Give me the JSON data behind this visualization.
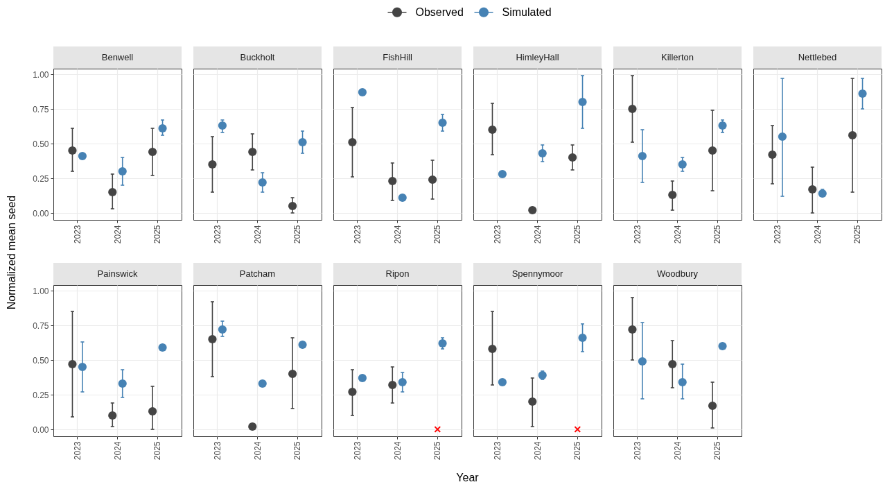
{
  "chart_data": [
    {
      "type": "scatter",
      "title": "Benwell",
      "ylabel": "Normalized mean seed",
      "legend": "top",
      "categories": [
        "2023",
        "2024",
        "2025"
      ],
      "ylim": [
        -0.05,
        1.04
      ],
      "yticks": [
        {
          "value": 0,
          "label": "0.00"
        },
        {
          "value": 0.25,
          "label": "0.25"
        },
        {
          "value": 0.5,
          "label": "0.50"
        },
        {
          "value": 0.75,
          "label": "0.75"
        },
        {
          "value": 1,
          "label": "1.00"
        }
      ],
      "grid": true,
      "marker": "circle",
      "series": [
        {
          "name": "Observed",
          "color": "#444444",
          "values": [
            0.45,
            0.15,
            0.44
          ],
          "errors": [
            [
              0.3,
              0.61
            ],
            [
              0.03,
              0.28
            ],
            [
              0.27,
              0.61
            ]
          ]
        },
        {
          "name": "Simulated",
          "color": "#4682b4",
          "values": [
            0.41,
            0.3,
            0.61
          ],
          "errors": [
            null,
            [
              0.2,
              0.4
            ],
            [
              0.56,
              0.67
            ]
          ]
        }
      ]
    },
    {
      "type": "scatter",
      "title": "Buckholt",
      "tick_labels": "x",
      "categories": [
        "2023",
        "2024",
        "2025"
      ],
      "ylim": [
        -0.05,
        1.04
      ],
      "yticks": [
        0,
        0.25,
        0.5,
        0.75,
        1
      ],
      "grid": true,
      "marker": "circle",
      "series": [
        {
          "name": "Observed",
          "color": "#444444",
          "values": [
            0.35,
            0.44,
            0.05
          ],
          "errors": [
            [
              0.15,
              0.55
            ],
            [
              0.31,
              0.57
            ],
            [
              0.0,
              0.11
            ]
          ]
        },
        {
          "name": "Simulated",
          "color": "#4682b4",
          "values": [
            0.63,
            0.22,
            0.51
          ],
          "errors": [
            [
              0.58,
              0.67
            ],
            [
              0.15,
              0.29
            ],
            [
              0.43,
              0.59
            ]
          ]
        }
      ]
    },
    {
      "type": "scatter",
      "title": "FishHill",
      "tick_labels": "x",
      "categories": [
        "2023",
        "2024",
        "2025"
      ],
      "ylim": [
        -0.05,
        1.04
      ],
      "yticks": [
        0,
        0.25,
        0.5,
        0.75,
        1
      ],
      "grid": true,
      "marker": "circle",
      "series": [
        {
          "name": "Observed",
          "color": "#444444",
          "values": [
            0.51,
            0.23,
            0.24
          ],
          "errors": [
            [
              0.26,
              0.76
            ],
            [
              0.09,
              0.36
            ],
            [
              0.1,
              0.38
            ]
          ]
        },
        {
          "name": "Simulated",
          "color": "#4682b4",
          "values": [
            0.87,
            0.11,
            0.65
          ],
          "errors": [
            null,
            null,
            [
              0.59,
              0.71
            ]
          ]
        }
      ]
    },
    {
      "type": "scatter",
      "title": "HimleyHall",
      "tick_labels": "x",
      "categories": [
        "2023",
        "2024",
        "2025"
      ],
      "ylim": [
        -0.05,
        1.04
      ],
      "yticks": [
        0,
        0.25,
        0.5,
        0.75,
        1
      ],
      "grid": true,
      "marker": "circle",
      "series": [
        {
          "name": "Observed",
          "color": "#444444",
          "values": [
            0.6,
            0.02,
            0.4
          ],
          "errors": [
            [
              0.42,
              0.79
            ],
            null,
            [
              0.31,
              0.49
            ]
          ]
        },
        {
          "name": "Simulated",
          "color": "#4682b4",
          "values": [
            0.28,
            0.43,
            0.8
          ],
          "errors": [
            null,
            [
              0.37,
              0.49
            ],
            [
              0.61,
              0.99
            ]
          ]
        }
      ]
    },
    {
      "type": "scatter",
      "title": "Killerton",
      "tick_labels": "x",
      "categories": [
        "2023",
        "2024",
        "2025"
      ],
      "ylim": [
        -0.05,
        1.04
      ],
      "yticks": [
        0,
        0.25,
        0.5,
        0.75,
        1
      ],
      "grid": true,
      "marker": "circle",
      "series": [
        {
          "name": "Observed",
          "color": "#444444",
          "values": [
            0.75,
            0.13,
            0.45
          ],
          "errors": [
            [
              0.51,
              0.99
            ],
            [
              0.02,
              0.23
            ],
            [
              0.16,
              0.74
            ]
          ]
        },
        {
          "name": "Simulated",
          "color": "#4682b4",
          "values": [
            0.41,
            0.35,
            0.63
          ],
          "errors": [
            [
              0.22,
              0.6
            ],
            [
              0.3,
              0.4
            ],
            [
              0.58,
              0.67
            ]
          ]
        }
      ]
    },
    {
      "type": "scatter",
      "title": "Nettlebed",
      "tick_labels": "x",
      "categories": [
        "2023",
        "2024",
        "2025"
      ],
      "ylim": [
        -0.05,
        1.04
      ],
      "yticks": [
        0,
        0.25,
        0.5,
        0.75,
        1
      ],
      "grid": true,
      "marker": "circle",
      "series": [
        {
          "name": "Observed",
          "color": "#444444",
          "values": [
            0.42,
            0.17,
            0.56
          ],
          "errors": [
            [
              0.21,
              0.63
            ],
            [
              0.0,
              0.33
            ],
            [
              0.15,
              0.97
            ]
          ]
        },
        {
          "name": "Simulated",
          "color": "#4682b4",
          "values": [
            0.55,
            0.14,
            0.86
          ],
          "errors": [
            [
              0.12,
              0.97
            ],
            [
              0.12,
              0.17
            ],
            [
              0.75,
              0.97
            ]
          ]
        }
      ]
    },
    {
      "type": "scatter",
      "title": "Painswick",
      "categories": [
        "2023",
        "2024",
        "2025"
      ],
      "ylim": [
        -0.05,
        1.04
      ],
      "yticks": [
        {
          "value": 0,
          "label": "0.00"
        },
        {
          "value": 0.25,
          "label": "0.25"
        },
        {
          "value": 0.5,
          "label": "0.50"
        },
        {
          "value": 0.75,
          "label": "0.75"
        },
        {
          "value": 1,
          "label": "1.00"
        }
      ],
      "grid": true,
      "marker": "circle",
      "series": [
        {
          "name": "Observed",
          "color": "#444444",
          "values": [
            0.47,
            0.1,
            0.13
          ],
          "errors": [
            [
              0.09,
              0.85
            ],
            [
              0.02,
              0.19
            ],
            [
              0.0,
              0.31
            ]
          ]
        },
        {
          "name": "Simulated",
          "color": "#4682b4",
          "values": [
            0.45,
            0.33,
            0.59
          ],
          "errors": [
            [
              0.27,
              0.63
            ],
            [
              0.23,
              0.43
            ],
            null
          ]
        }
      ]
    },
    {
      "type": "scatter",
      "title": "Patcham",
      "tick_labels": "x",
      "categories": [
        "2023",
        "2024",
        "2025"
      ],
      "ylim": [
        -0.05,
        1.04
      ],
      "yticks": [
        0,
        0.25,
        0.5,
        0.75,
        1
      ],
      "grid": true,
      "marker": "circle",
      "series": [
        {
          "name": "Observed",
          "color": "#444444",
          "values": [
            0.65,
            0.02,
            0.4
          ],
          "errors": [
            [
              0.38,
              0.92
            ],
            null,
            [
              0.15,
              0.66
            ]
          ]
        },
        {
          "name": "Simulated",
          "color": "#4682b4",
          "values": [
            0.72,
            0.33,
            0.61
          ],
          "errors": [
            [
              0.67,
              0.78
            ],
            null,
            null
          ]
        }
      ]
    },
    {
      "type": "scatter",
      "title": "Ripon",
      "tick_labels": "x",
      "categories": [
        "2023",
        "2024",
        "2025"
      ],
      "ylim": [
        -0.05,
        1.04
      ],
      "yticks": [
        0,
        0.25,
        0.5,
        0.75,
        1
      ],
      "grid": true,
      "marker": "circle",
      "series": [
        {
          "name": "Observed",
          "color": "#444444",
          "values": [
            0.27,
            0.32,
            null
          ],
          "errors": [
            [
              0.1,
              0.43
            ],
            [
              0.19,
              0.45
            ],
            null
          ]
        },
        {
          "name": "Simulated",
          "color": "#4682b4",
          "values": [
            0.37,
            0.34,
            0.62
          ],
          "errors": [
            null,
            [
              0.27,
              0.41
            ],
            [
              0.58,
              0.66
            ]
          ]
        },
        {
          "type": "scatter",
          "marker": "cross",
          "color": "#ff0000",
          "values": [
            null,
            null,
            0
          ]
        }
      ]
    },
    {
      "type": "scatter",
      "title": "Spennymoor",
      "xlabel": "Year",
      "tick_labels": "x",
      "categories": [
        "2023",
        "2024",
        "2025"
      ],
      "ylim": [
        -0.05,
        1.04
      ],
      "yticks": [
        0,
        0.25,
        0.5,
        0.75,
        1
      ],
      "grid": true,
      "marker": "circle",
      "series": [
        {
          "name": "Observed",
          "color": "#444444",
          "values": [
            0.58,
            0.2,
            null
          ],
          "errors": [
            [
              0.32,
              0.85
            ],
            [
              0.02,
              0.37
            ],
            null
          ]
        },
        {
          "name": "Simulated",
          "color": "#4682b4",
          "values": [
            0.34,
            0.39,
            0.66
          ],
          "errors": [
            null,
            [
              0.36,
              0.42
            ],
            [
              0.56,
              0.76
            ]
          ]
        },
        {
          "type": "scatter",
          "marker": "cross",
          "color": "#ff0000",
          "values": [
            null,
            null,
            0
          ]
        }
      ]
    },
    {
      "type": "scatter",
      "title": "Woodbury",
      "tick_labels": "x",
      "categories": [
        "2023",
        "2024",
        "2025"
      ],
      "ylim": [
        -0.05,
        1.04
      ],
      "yticks": [
        0,
        0.25,
        0.5,
        0.75,
        1
      ],
      "grid": true,
      "marker": "circle",
      "series": [
        {
          "name": "Observed",
          "color": "#444444",
          "values": [
            0.72,
            0.47,
            0.17
          ],
          "errors": [
            [
              0.5,
              0.95
            ],
            [
              0.3,
              0.64
            ],
            [
              0.01,
              0.34
            ]
          ]
        },
        {
          "name": "Simulated",
          "color": "#4682b4",
          "values": [
            0.49,
            0.34,
            0.6
          ],
          "errors": [
            [
              0.22,
              0.77
            ],
            [
              0.22,
              0.47
            ],
            null
          ]
        }
      ]
    }
  ]
}
